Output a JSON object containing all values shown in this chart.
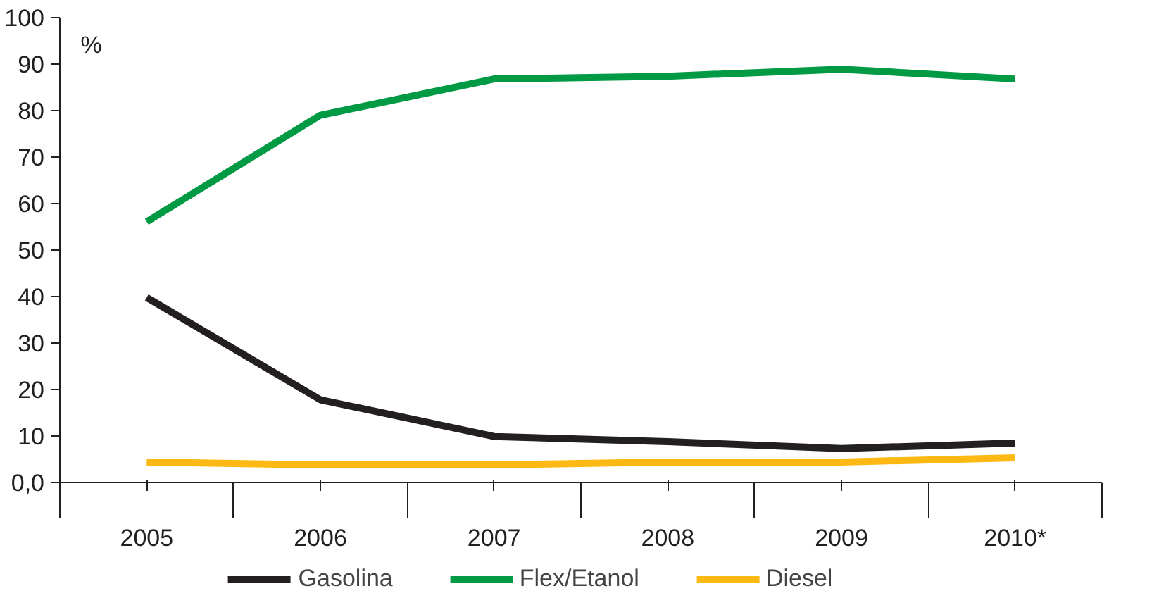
{
  "chart_data": {
    "type": "line",
    "categories": [
      "2005",
      "2006",
      "2007",
      "2008",
      "2009",
      "2010*"
    ],
    "series": [
      {
        "name": "Gasolina",
        "color": "#231f20",
        "values": [
          39.8,
          17.8,
          9.9,
          8.8,
          7.3,
          8.5
        ]
      },
      {
        "name": "Flex/Etanol",
        "color": "#009a44",
        "values": [
          56.1,
          79.0,
          86.8,
          87.4,
          88.9,
          86.8
        ]
      },
      {
        "name": "Diesel",
        "color": "#fdb913",
        "values": [
          4.4,
          3.8,
          3.8,
          4.4,
          4.4,
          5.3
        ]
      }
    ],
    "ylim": [
      0,
      100
    ],
    "yticks": [
      {
        "value": 0,
        "label": "0,0"
      },
      10,
      20,
      30,
      40,
      50,
      60,
      70,
      80,
      90,
      100
    ],
    "annotations": [
      {
        "text": "%"
      }
    ],
    "grid": false,
    "legend": "bottom",
    "marker": "none",
    "line_style": "solid"
  }
}
